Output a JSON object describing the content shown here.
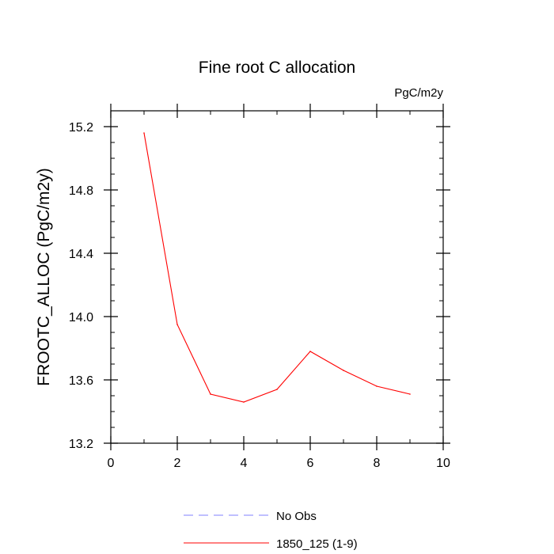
{
  "chart_data": {
    "type": "line",
    "title": "Fine root C allocation",
    "units": "PgC/m2y",
    "xlabel": "",
    "ylabel": "FROOTC_ALLOC  (PgC/m2y)",
    "xlim": [
      0,
      10
    ],
    "ylim": [
      13.2,
      15.3
    ],
    "x_major_ticks": [
      0,
      2,
      4,
      6,
      8,
      10
    ],
    "x_tick_labels": [
      "0",
      "2",
      "4",
      "6",
      "8",
      "10"
    ],
    "y_major_ticks": [
      13.2,
      13.6,
      14.0,
      14.4,
      14.8,
      15.2
    ],
    "y_tick_labels": [
      "13.2",
      "13.6",
      "14.0",
      "14.4",
      "14.8",
      "15.2"
    ],
    "grid": false,
    "legend_position": "bottom",
    "series": [
      {
        "name": "No Obs",
        "color": "#8080ff",
        "dash": "dashed",
        "x": [],
        "values": []
      },
      {
        "name": "1850_125 (1-9)",
        "color": "#ff0000",
        "dash": "solid",
        "x": [
          1,
          2,
          3,
          4,
          5,
          6,
          7,
          8,
          9
        ],
        "values": [
          15.16,
          13.95,
          13.51,
          13.46,
          13.54,
          13.78,
          13.66,
          13.56,
          13.51
        ]
      }
    ]
  }
}
